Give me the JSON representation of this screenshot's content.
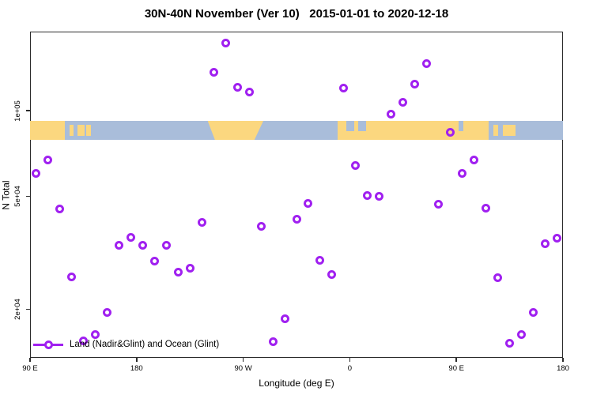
{
  "chart_data": {
    "type": "scatter",
    "title": "30N-40N November (Ver 10)   2015-01-01 to 2020-12-18",
    "xlabel": "Longitude (deg E)",
    "ylabel": "N Total",
    "y_scale": "log",
    "grid": "off",
    "legend_position": "bottom-left-inside",
    "legend": {
      "label": "Land (Nadir&Glint) and Ocean (Glint)"
    },
    "colors": {
      "point": "#A020F0",
      "land": "#FBD77F",
      "ocean": "#A9BDDA",
      "axis": "#2b2b2b"
    },
    "x_axis": {
      "start_deg": 90,
      "end_deg": 540,
      "note_visible_ticks_only": true,
      "ticks": [
        {
          "pos": 90,
          "label": "90 E"
        },
        {
          "pos": 180,
          "label": "180"
        },
        {
          "pos": 270,
          "label": "90 W"
        },
        {
          "pos": 360,
          "label": "0"
        },
        {
          "pos": 450,
          "label": "90 E"
        },
        {
          "pos": 540,
          "label": "180"
        }
      ]
    },
    "y_axis": {
      "ticks": [
        {
          "value": 100000,
          "label": "1e+05"
        },
        {
          "value": 50000,
          "label": "5e+04"
        },
        {
          "value": 20000,
          "label": "2e+04"
        }
      ]
    },
    "map_strip": {
      "band": "30N-40N land/ocean strip",
      "land_segments": [
        {
          "from": 90,
          "to": 119.5,
          "shape": "full"
        },
        {
          "from": 123.5,
          "to": 127,
          "shape": "island"
        },
        {
          "from": 130,
          "to": 136,
          "shape": "island"
        },
        {
          "from": 137.5,
          "to": 141.5,
          "shape": "island"
        },
        {
          "from": 240,
          "to": 287,
          "shape": "taper"
        },
        {
          "from": 350,
          "to": 477,
          "shape": "full"
        },
        {
          "from": 481,
          "to": 485,
          "shape": "island"
        },
        {
          "from": 489,
          "to": 500,
          "shape": "island"
        }
      ],
      "ocean_patches": [
        {
          "from": 357,
          "to": 364,
          "half": "top"
        },
        {
          "from": 367,
          "to": 374,
          "half": "top"
        },
        {
          "from": 452,
          "to": 456,
          "half": "top"
        },
        {
          "from": 477,
          "to": 481,
          "half": "full"
        },
        {
          "from": 485,
          "to": 489,
          "half": "full"
        }
      ]
    },
    "points": [
      {
        "lon": 95,
        "n": 60000
      },
      {
        "lon": 105,
        "n": 67000
      },
      {
        "lon": 115,
        "n": 45000
      },
      {
        "lon": 125,
        "n": 26000
      },
      {
        "lon": 135,
        "n": 15500
      },
      {
        "lon": 145,
        "n": 16300
      },
      {
        "lon": 155,
        "n": 19500
      },
      {
        "lon": 165,
        "n": 33700
      },
      {
        "lon": 175,
        "n": 35800
      },
      {
        "lon": 185,
        "n": 33700
      },
      {
        "lon": 195,
        "n": 29500
      },
      {
        "lon": 205,
        "n": 33500
      },
      {
        "lon": 215,
        "n": 27100
      },
      {
        "lon": 225,
        "n": 28000
      },
      {
        "lon": 235,
        "n": 40400
      },
      {
        "lon": 245,
        "n": 136000
      },
      {
        "lon": 255,
        "n": 173000
      },
      {
        "lon": 265,
        "n": 121000
      },
      {
        "lon": 275,
        "n": 116000
      },
      {
        "lon": 285,
        "n": 39300
      },
      {
        "lon": 295,
        "n": 15400
      },
      {
        "lon": 305,
        "n": 18500
      },
      {
        "lon": 315,
        "n": 41400
      },
      {
        "lon": 325,
        "n": 47300
      },
      {
        "lon": 335,
        "n": 29800
      },
      {
        "lon": 345,
        "n": 26600
      },
      {
        "lon": 355,
        "n": 120000
      },
      {
        "lon": 365,
        "n": 64000
      },
      {
        "lon": 375,
        "n": 50400
      },
      {
        "lon": 385,
        "n": 49800
      },
      {
        "lon": 395,
        "n": 97000
      },
      {
        "lon": 405,
        "n": 107000
      },
      {
        "lon": 415,
        "n": 124000
      },
      {
        "lon": 425,
        "n": 146000
      },
      {
        "lon": 435,
        "n": 47000
      },
      {
        "lon": 445,
        "n": 84000
      },
      {
        "lon": 455,
        "n": 60000
      },
      {
        "lon": 465,
        "n": 67000
      },
      {
        "lon": 475,
        "n": 45500
      },
      {
        "lon": 485,
        "n": 25900
      },
      {
        "lon": 495,
        "n": 15200
      },
      {
        "lon": 505,
        "n": 16300
      },
      {
        "lon": 515,
        "n": 19500
      },
      {
        "lon": 525,
        "n": 34000
      },
      {
        "lon": 535,
        "n": 35500
      }
    ]
  }
}
